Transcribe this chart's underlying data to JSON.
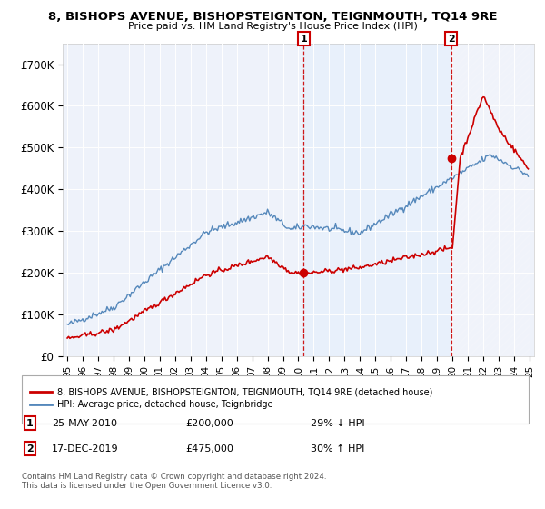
{
  "title": "8, BISHOPS AVENUE, BISHOPSTEIGNTON, TEIGNMOUTH, TQ14 9RE",
  "subtitle": "Price paid vs. HM Land Registry's House Price Index (HPI)",
  "legend_line1": "8, BISHOPS AVENUE, BISHOPSTEIGNTON, TEIGNMOUTH, TQ14 9RE (detached house)",
  "legend_line2": "HPI: Average price, detached house, Teignbridge",
  "footnote": "Contains HM Land Registry data © Crown copyright and database right 2024.\nThis data is licensed under the Open Government Licence v3.0.",
  "annotation1_label": "1",
  "annotation1_date": "25-MAY-2010",
  "annotation1_price": "£200,000",
  "annotation1_hpi": "29% ↓ HPI",
  "annotation2_label": "2",
  "annotation2_date": "17-DEC-2019",
  "annotation2_price": "£475,000",
  "annotation2_hpi": "30% ↑ HPI",
  "red_color": "#cc0000",
  "blue_color": "#5588bb",
  "shade_color": "#ddeeff",
  "ylim": [
    0,
    750000
  ],
  "yticks": [
    0,
    100000,
    200000,
    300000,
    400000,
    500000,
    600000,
    700000
  ],
  "ytick_labels": [
    "£0",
    "£100K",
    "£200K",
    "£300K",
    "£400K",
    "£500K",
    "£600K",
    "£700K"
  ],
  "background_color": "#ffffff",
  "plot_bg_color": "#eef2fa"
}
